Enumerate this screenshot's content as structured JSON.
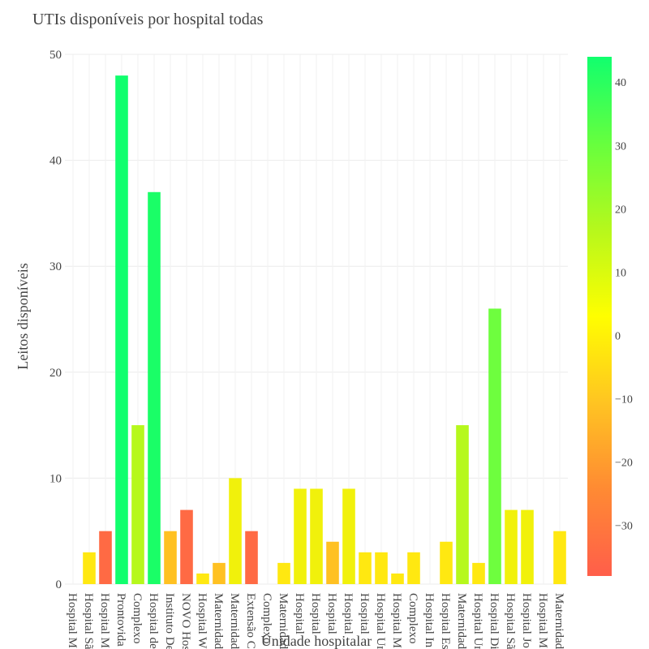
{
  "chart_data": {
    "type": "bar",
    "title": "UTIs disponíveis por hospital todas",
    "xlabel": "Unidade hospitalar",
    "ylabel": "Leitos disponíveis",
    "ylim": [
      0,
      50
    ],
    "yticks": [
      0,
      10,
      20,
      30,
      40,
      50
    ],
    "grid": true,
    "categories": [
      "Hospital M",
      "Hospital Sã",
      "Hospital M",
      "Prontovida",
      "Complexo",
      "Hospital de",
      "Instituto De",
      "NOVO Hos",
      "Hospital W",
      "Maternidad",
      "Maternidad",
      "Extensão C",
      "Complexo",
      "Maternidad",
      "Hospital",
      "Hospital",
      "Hospital",
      "Hospital",
      "Hospital",
      "Hospital Ur",
      "Hospital M",
      "Complexo",
      "Hospital In",
      "Hospital Es",
      "Maternidad",
      "Hospital Ur",
      "Hospital Di",
      "Hospital Sã",
      "Hospital Jo",
      "Hospital M",
      "Maternidad"
    ],
    "values": [
      0,
      3,
      5,
      48,
      15,
      37,
      5,
      7,
      1,
      2,
      10,
      5,
      0,
      2,
      9,
      9,
      4,
      9,
      3,
      3,
      1,
      3,
      0,
      4,
      15,
      2,
      26,
      7,
      7,
      0,
      5
    ],
    "colors": [
      "#ffe811",
      "#ffe811",
      "#ff6a44",
      "#11ff6e",
      "#b6f81c",
      "#1afe67",
      "#ffc122",
      "#ff6a44",
      "#ffe811",
      "#ffc122",
      "#f1f10b",
      "#ff6a44",
      "#ffe811",
      "#ffe811",
      "#f1f10b",
      "#f1f10b",
      "#ffc122",
      "#f1f10b",
      "#ffe811",
      "#ffe811",
      "#ffe811",
      "#ffe811",
      "#ffe811",
      "#ffe811",
      "#b6f81c",
      "#ffe811",
      "#6efe3e",
      "#f1f10b",
      "#f1f10b",
      "#ffe811",
      "#ffe811"
    ],
    "colorbar": {
      "ticks": [
        40,
        30,
        20,
        10,
        0,
        -10,
        -20,
        -30
      ],
      "range": [
        -38,
        44
      ],
      "colors_top_to_bottom": [
        "#11ff6e",
        "#66ff3e",
        "#b6f81c",
        "#fffe00",
        "#ffc422",
        "#ff8a33",
        "#ff5e4a"
      ]
    }
  }
}
